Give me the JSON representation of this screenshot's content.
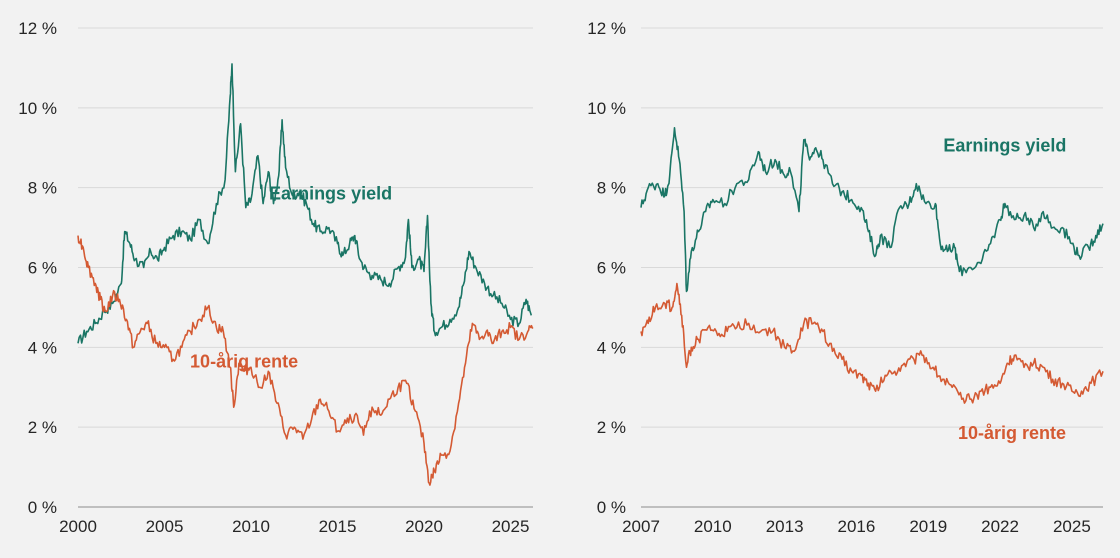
{
  "colors": {
    "earnings": "#1a7565",
    "rente": "#d45a33"
  },
  "chart_data": [
    {
      "type": "line",
      "y_tick_labels": [
        "0 %",
        "2 %",
        "4 %",
        "6 %",
        "8 %",
        "10 %",
        "12 %"
      ],
      "ylim": [
        0,
        12
      ],
      "x_tick_labels": [
        "2000",
        "2005",
        "2010",
        "2015",
        "2020",
        "2025"
      ],
      "x_ticks": [
        2000,
        2005,
        2010,
        2015,
        2020,
        2025
      ],
      "xlim": [
        2000,
        2026.3
      ],
      "grid": true,
      "series": [
        {
          "name": "Earnings yield",
          "color_key": "earnings",
          "label_at": [
            2014.6,
            7.7
          ],
          "points": [
            [
              2000.0,
              4.1
            ],
            [
              2000.5,
              4.4
            ],
            [
              2001.0,
              4.6
            ],
            [
              2001.5,
              4.9
            ],
            [
              2002.0,
              5.1
            ],
            [
              2002.5,
              5.6
            ],
            [
              2002.7,
              6.9
            ],
            [
              2003.0,
              6.6
            ],
            [
              2003.3,
              6.2
            ],
            [
              2003.8,
              6.0
            ],
            [
              2004.2,
              6.4
            ],
            [
              2004.6,
              6.2
            ],
            [
              2005.0,
              6.5
            ],
            [
              2005.5,
              6.8
            ],
            [
              2006.0,
              6.9
            ],
            [
              2006.5,
              6.7
            ],
            [
              2007.0,
              7.2
            ],
            [
              2007.5,
              6.6
            ],
            [
              2008.0,
              7.6
            ],
            [
              2008.5,
              8.2
            ],
            [
              2008.8,
              10.3
            ],
            [
              2008.9,
              11.1
            ],
            [
              2009.1,
              8.4
            ],
            [
              2009.4,
              9.6
            ],
            [
              2009.7,
              7.5
            ],
            [
              2010.0,
              7.7
            ],
            [
              2010.4,
              8.8
            ],
            [
              2010.7,
              7.6
            ],
            [
              2011.0,
              8.4
            ],
            [
              2011.3,
              7.6
            ],
            [
              2011.6,
              8.3
            ],
            [
              2011.8,
              9.7
            ],
            [
              2012.0,
              8.5
            ],
            [
              2012.4,
              7.8
            ],
            [
              2012.8,
              7.9
            ],
            [
              2013.2,
              7.6
            ],
            [
              2013.6,
              7.1
            ],
            [
              2014.0,
              6.9
            ],
            [
              2014.5,
              7.0
            ],
            [
              2015.0,
              6.6
            ],
            [
              2015.3,
              6.3
            ],
            [
              2015.7,
              6.6
            ],
            [
              2016.0,
              6.8
            ],
            [
              2016.3,
              6.2
            ],
            [
              2016.7,
              5.9
            ],
            [
              2017.0,
              5.8
            ],
            [
              2017.5,
              5.7
            ],
            [
              2018.0,
              5.6
            ],
            [
              2018.5,
              6.0
            ],
            [
              2018.9,
              6.2
            ],
            [
              2019.1,
              7.2
            ],
            [
              2019.3,
              6.0
            ],
            [
              2019.7,
              6.2
            ],
            [
              2020.0,
              5.9
            ],
            [
              2020.2,
              7.3
            ],
            [
              2020.4,
              5.1
            ],
            [
              2020.6,
              4.4
            ],
            [
              2021.0,
              4.5
            ],
            [
              2021.5,
              4.7
            ],
            [
              2022.0,
              5.0
            ],
            [
              2022.3,
              5.6
            ],
            [
              2022.6,
              6.4
            ],
            [
              2023.0,
              6.0
            ],
            [
              2023.5,
              5.6
            ],
            [
              2024.0,
              5.3
            ],
            [
              2024.5,
              5.1
            ],
            [
              2025.0,
              4.7
            ],
            [
              2025.5,
              4.6
            ],
            [
              2025.9,
              5.2
            ],
            [
              2026.2,
              4.8
            ]
          ]
        },
        {
          "name": "10-årig rente",
          "color_key": "rente",
          "label_at": [
            2009.6,
            3.5
          ],
          "points": [
            [
              2000.0,
              6.8
            ],
            [
              2000.3,
              6.5
            ],
            [
              2000.6,
              6.0
            ],
            [
              2001.0,
              5.6
            ],
            [
              2001.3,
              5.2
            ],
            [
              2001.6,
              4.9
            ],
            [
              2002.0,
              5.3
            ],
            [
              2002.4,
              5.2
            ],
            [
              2002.8,
              4.7
            ],
            [
              2003.2,
              4.0
            ],
            [
              2003.6,
              4.4
            ],
            [
              2004.0,
              4.6
            ],
            [
              2004.5,
              4.1
            ],
            [
              2005.0,
              4.0
            ],
            [
              2005.5,
              3.7
            ],
            [
              2006.0,
              4.0
            ],
            [
              2006.5,
              4.4
            ],
            [
              2007.0,
              4.7
            ],
            [
              2007.5,
              5.0
            ],
            [
              2008.0,
              4.5
            ],
            [
              2008.4,
              4.4
            ],
            [
              2008.8,
              3.5
            ],
            [
              2009.0,
              2.5
            ],
            [
              2009.3,
              3.6
            ],
            [
              2009.6,
              3.4
            ],
            [
              2010.0,
              3.5
            ],
            [
              2010.5,
              3.0
            ],
            [
              2011.0,
              3.4
            ],
            [
              2011.5,
              2.6
            ],
            [
              2012.0,
              1.8
            ],
            [
              2012.5,
              2.0
            ],
            [
              2013.0,
              1.7
            ],
            [
              2013.5,
              2.2
            ],
            [
              2014.0,
              2.7
            ],
            [
              2014.5,
              2.4
            ],
            [
              2015.0,
              1.9
            ],
            [
              2015.5,
              2.1
            ],
            [
              2016.0,
              2.3
            ],
            [
              2016.5,
              1.8
            ],
            [
              2017.0,
              2.5
            ],
            [
              2017.5,
              2.3
            ],
            [
              2018.0,
              2.7
            ],
            [
              2018.5,
              3.0
            ],
            [
              2019.0,
              3.1
            ],
            [
              2019.5,
              2.4
            ],
            [
              2020.0,
              1.6
            ],
            [
              2020.3,
              0.6
            ],
            [
              2020.6,
              0.9
            ],
            [
              2021.0,
              1.3
            ],
            [
              2021.5,
              1.4
            ],
            [
              2022.0,
              2.6
            ],
            [
              2022.4,
              3.6
            ],
            [
              2022.8,
              4.6
            ],
            [
              2023.2,
              4.2
            ],
            [
              2023.6,
              4.4
            ],
            [
              2024.0,
              4.1
            ],
            [
              2024.5,
              4.4
            ],
            [
              2025.0,
              4.5
            ],
            [
              2025.5,
              4.2
            ],
            [
              2026.0,
              4.4
            ],
            [
              2026.3,
              4.5
            ]
          ]
        }
      ]
    },
    {
      "type": "line",
      "y_tick_labels": [
        "0 %",
        "2 %",
        "4 %",
        "6 %",
        "8 %",
        "10 %",
        "12 %"
      ],
      "ylim": [
        0,
        12
      ],
      "x_tick_labels": [
        "2007",
        "2010",
        "2013",
        "2016",
        "2019",
        "2022",
        "2025"
      ],
      "x_ticks": [
        2007,
        2010,
        2013,
        2016,
        2019,
        2022,
        2025
      ],
      "xlim": [
        2007,
        2026.3
      ],
      "grid": true,
      "series": [
        {
          "name": "Earnings yield",
          "color_key": "earnings",
          "label_at": [
            2022.2,
            8.9
          ],
          "points": [
            [
              2007.0,
              7.5
            ],
            [
              2007.3,
              8.0
            ],
            [
              2007.7,
              8.1
            ],
            [
              2008.0,
              7.8
            ],
            [
              2008.2,
              8.3
            ],
            [
              2008.4,
              9.5
            ],
            [
              2008.6,
              8.7
            ],
            [
              2008.8,
              7.4
            ],
            [
              2008.9,
              5.4
            ],
            [
              2009.1,
              6.4
            ],
            [
              2009.4,
              6.9
            ],
            [
              2009.7,
              7.4
            ],
            [
              2010.0,
              7.7
            ],
            [
              2010.5,
              7.6
            ],
            [
              2011.0,
              8.1
            ],
            [
              2011.5,
              8.2
            ],
            [
              2011.9,
              8.9
            ],
            [
              2012.2,
              8.4
            ],
            [
              2012.6,
              8.7
            ],
            [
              2013.0,
              8.3
            ],
            [
              2013.2,
              8.5
            ],
            [
              2013.6,
              7.4
            ],
            [
              2013.8,
              9.2
            ],
            [
              2014.0,
              8.8
            ],
            [
              2014.3,
              9.0
            ],
            [
              2014.6,
              8.7
            ],
            [
              2015.0,
              8.1
            ],
            [
              2015.4,
              7.9
            ],
            [
              2015.8,
              7.7
            ],
            [
              2016.2,
              7.5
            ],
            [
              2016.5,
              6.9
            ],
            [
              2016.8,
              6.3
            ],
            [
              2017.0,
              6.8
            ],
            [
              2017.4,
              6.5
            ],
            [
              2017.8,
              7.5
            ],
            [
              2018.2,
              7.6
            ],
            [
              2018.5,
              8.1
            ],
            [
              2018.9,
              7.6
            ],
            [
              2019.3,
              7.6
            ],
            [
              2019.5,
              6.6
            ],
            [
              2019.8,
              6.4
            ],
            [
              2020.1,
              6.5
            ],
            [
              2020.3,
              5.9
            ],
            [
              2020.7,
              6.0
            ],
            [
              2021.2,
              6.1
            ],
            [
              2021.6,
              6.6
            ],
            [
              2022.0,
              7.2
            ],
            [
              2022.2,
              7.6
            ],
            [
              2022.6,
              7.2
            ],
            [
              2023.0,
              7.3
            ],
            [
              2023.4,
              7.0
            ],
            [
              2023.8,
              7.4
            ],
            [
              2024.2,
              7.0
            ],
            [
              2024.6,
              7.0
            ],
            [
              2025.0,
              6.6
            ],
            [
              2025.3,
              6.3
            ],
            [
              2025.7,
              6.5
            ],
            [
              2026.0,
              6.8
            ],
            [
              2026.3,
              7.1
            ]
          ]
        },
        {
          "name": "10-årig rente",
          "color_key": "rente",
          "label_at": [
            2022.5,
            1.7
          ],
          "points": [
            [
              2007.0,
              4.4
            ],
            [
              2007.3,
              4.6
            ],
            [
              2007.6,
              5.0
            ],
            [
              2008.0,
              5.1
            ],
            [
              2008.3,
              5.0
            ],
            [
              2008.5,
              5.6
            ],
            [
              2008.7,
              4.8
            ],
            [
              2008.9,
              3.5
            ],
            [
              2009.1,
              4.0
            ],
            [
              2009.4,
              4.2
            ],
            [
              2009.8,
              4.5
            ],
            [
              2010.2,
              4.3
            ],
            [
              2010.6,
              4.4
            ],
            [
              2011.0,
              4.5
            ],
            [
              2011.5,
              4.6
            ],
            [
              2012.0,
              4.4
            ],
            [
              2012.5,
              4.4
            ],
            [
              2013.0,
              4.0
            ],
            [
              2013.4,
              3.9
            ],
            [
              2013.8,
              4.6
            ],
            [
              2014.2,
              4.6
            ],
            [
              2014.6,
              4.4
            ],
            [
              2015.0,
              3.9
            ],
            [
              2015.4,
              3.7
            ],
            [
              2015.8,
              3.4
            ],
            [
              2016.2,
              3.3
            ],
            [
              2016.5,
              3.1
            ],
            [
              2016.8,
              2.9
            ],
            [
              2017.2,
              3.3
            ],
            [
              2017.6,
              3.4
            ],
            [
              2018.0,
              3.6
            ],
            [
              2018.4,
              3.7
            ],
            [
              2018.8,
              3.8
            ],
            [
              2019.2,
              3.5
            ],
            [
              2019.6,
              3.2
            ],
            [
              2020.0,
              3.0
            ],
            [
              2020.4,
              2.7
            ],
            [
              2020.8,
              2.7
            ],
            [
              2021.2,
              2.9
            ],
            [
              2021.6,
              3.0
            ],
            [
              2022.0,
              3.1
            ],
            [
              2022.3,
              3.6
            ],
            [
              2022.6,
              3.8
            ],
            [
              2023.0,
              3.5
            ],
            [
              2023.4,
              3.6
            ],
            [
              2023.8,
              3.5
            ],
            [
              2024.2,
              3.2
            ],
            [
              2024.6,
              3.1
            ],
            [
              2025.0,
              2.9
            ],
            [
              2025.4,
              2.9
            ],
            [
              2025.8,
              3.1
            ],
            [
              2026.3,
              3.4
            ]
          ]
        }
      ]
    }
  ]
}
